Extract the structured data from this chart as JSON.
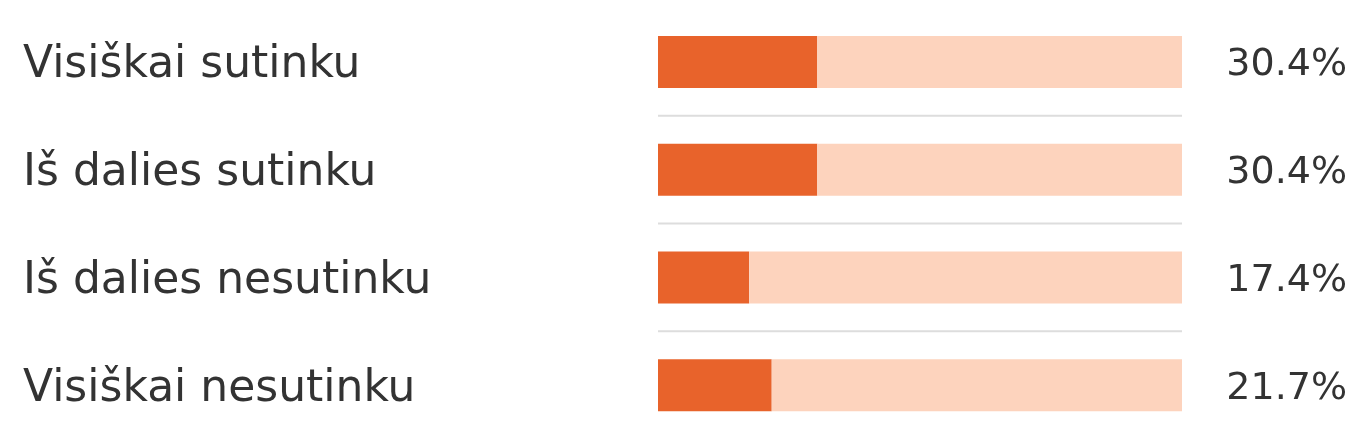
{
  "chart_data": {
    "type": "bar",
    "orientation": "horizontal",
    "stacked": true,
    "categories": [
      "Visiškai sutinku",
      "Iš dalies sutinku",
      "Iš dalies nesutinku",
      "Visiškai nesutinku"
    ],
    "series": [
      {
        "color": "#e8632b",
        "values": [
          30.4,
          30.4,
          17.4,
          21.7
        ],
        "value_labels": [
          "30.4%",
          "30.4%",
          "17.4%",
          "21.7%"
        ]
      },
      {
        "color": "#fdd3bd",
        "values": [
          69.6,
          69.6,
          82.6,
          78.3
        ]
      }
    ],
    "xlim": [
      0,
      100
    ],
    "tick_labels": "y",
    "grid": "y"
  }
}
